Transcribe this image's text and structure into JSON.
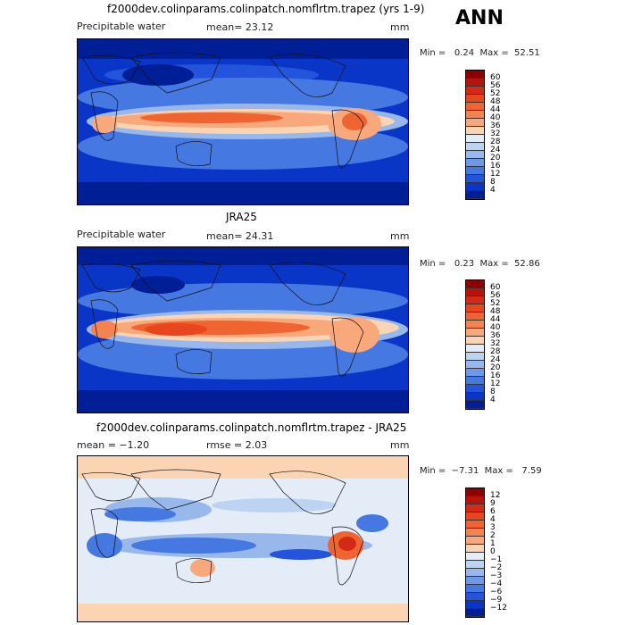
{
  "season": "ANN",
  "panels": [
    {
      "title": "f2000dev.colinparams.colinpatch.nomflrtm.trapez (yrs 1-9)",
      "variable": "Precipitable water",
      "stat": "mean=  23.12",
      "units": "mm",
      "minmax": "Min =   0.24  Max =  52.51",
      "colorbar": {
        "labels": [
          "60",
          "56",
          "52",
          "48",
          "44",
          "40",
          "36",
          "32",
          "28",
          "24",
          "20",
          "16",
          "12",
          "8",
          "4"
        ],
        "colors": [
          "#8c0000",
          "#b4140a",
          "#d22a14",
          "#e8461e",
          "#f06432",
          "#f58350",
          "#f8a87a",
          "#fbd4b4",
          "#e4ecf8",
          "#bcd4f2",
          "#98b8ec",
          "#6f98e6",
          "#4678e2",
          "#2454dc",
          "#0a36c8",
          "#001e96"
        ]
      }
    },
    {
      "title": "JRA25",
      "variable": "Precipitable water",
      "stat": "mean=  24.31",
      "units": "mm",
      "minmax": "Min =   0.23  Max =  52.86",
      "colorbar": {
        "labels": [
          "60",
          "56",
          "52",
          "48",
          "44",
          "40",
          "36",
          "32",
          "28",
          "24",
          "20",
          "16",
          "12",
          "8",
          "4"
        ],
        "colors": [
          "#8c0000",
          "#b4140a",
          "#d22a14",
          "#e8461e",
          "#f06432",
          "#f58350",
          "#f8a87a",
          "#fbd4b4",
          "#e4ecf8",
          "#bcd4f2",
          "#98b8ec",
          "#6f98e6",
          "#4678e2",
          "#2454dc",
          "#0a36c8",
          "#001e96"
        ]
      }
    },
    {
      "title": "f2000dev.colinparams.colinpatch.nomflrtm.trapez - JRA25",
      "variable": "mean =  −1.20",
      "stat": "rmse =  2.03",
      "units": "mm",
      "minmax": "Min =  −7.31  Max =   7.59",
      "colorbar": {
        "labels": [
          "12",
          "9",
          "6",
          "4",
          "3",
          "2",
          "1",
          "0",
          "−1",
          "−2",
          "−3",
          "−4",
          "−6",
          "−9",
          "−12"
        ],
        "colors": [
          "#8c0000",
          "#b4140a",
          "#d22a14",
          "#e8461e",
          "#f06432",
          "#f58350",
          "#f8a87a",
          "#fbd4b4",
          "#e4ecf8",
          "#bcd4f2",
          "#98b8ec",
          "#6f98e6",
          "#4678e2",
          "#2454dc",
          "#0a36c8",
          "#001e96"
        ]
      }
    }
  ]
}
